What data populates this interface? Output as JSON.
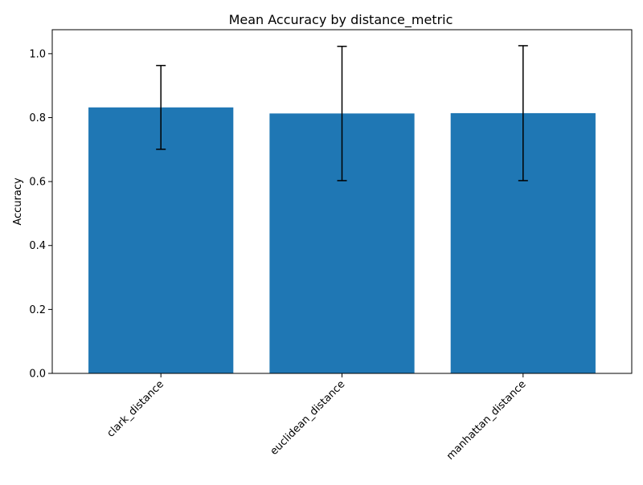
{
  "colors": {
    "bar": "#1f77b4",
    "axis": "#000000",
    "errorbar": "#000000",
    "background": "#ffffff"
  },
  "chart_data": {
    "type": "bar",
    "title": "Mean Accuracy by distance_metric",
    "xlabel": "",
    "ylabel": "Accuracy",
    "ylim": [
      0,
      1.075
    ],
    "categories": [
      "clark_distance",
      "euclidean_distance",
      "manhattan_distance"
    ],
    "values": [
      0.832,
      0.813,
      0.814
    ],
    "error": [
      0.131,
      0.21,
      0.211
    ],
    "yticks": [
      0.0,
      0.2,
      0.4,
      0.6,
      0.8,
      1.0
    ],
    "ytick_labels": [
      "0.0",
      "0.2",
      "0.4",
      "0.6",
      "0.8",
      "1.0"
    ],
    "grid": false,
    "legend": "none"
  }
}
